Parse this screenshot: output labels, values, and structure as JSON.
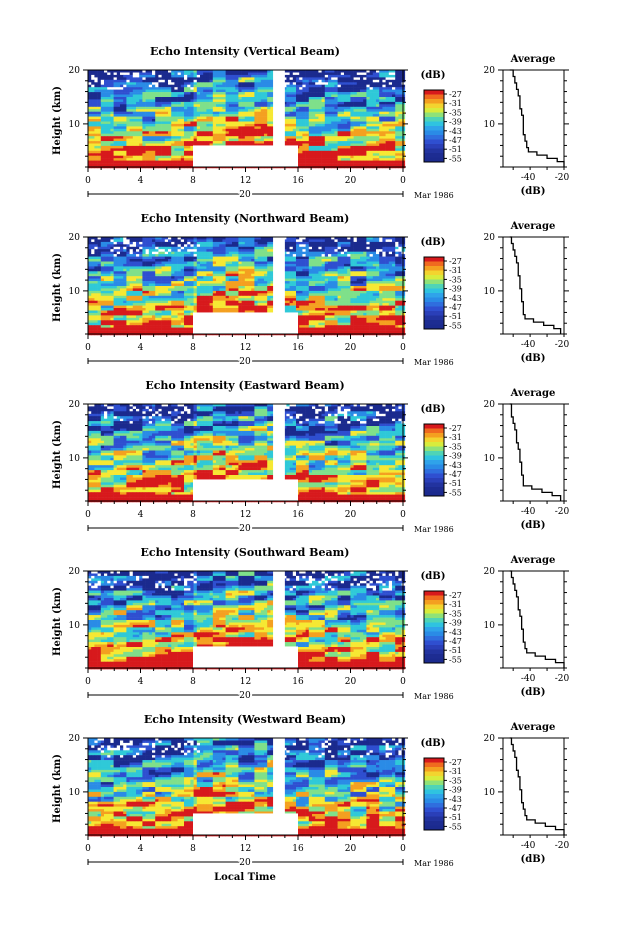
{
  "chart_data": [
    {
      "type": "heatmap",
      "title": "Echo Intensity (Vertical Beam)",
      "ylabel": "Height (km)",
      "xlabel": "",
      "x_ticks": [
        "0",
        "4",
        "8",
        "12",
        "16",
        "20",
        "0"
      ],
      "date_marker": "20",
      "date_label": "Mar 1986",
      "y_ticks": [
        "20",
        "10"
      ],
      "ylim": [
        2,
        20
      ],
      "xlim": [
        0,
        24
      ],
      "colorbar": {
        "unit": "(dB)",
        "levels": [
          -27,
          -31,
          -35,
          -39,
          -43,
          -47,
          -51,
          -55
        ]
      },
      "data_gap": {
        "x": [
          14.1,
          15.0
        ],
        "y_low": [
          8,
          16
        ],
        "y_low_max": 6
      },
      "average": {
        "title": "Average",
        "xlabel": "(dB)",
        "x_ticks": [
          "-40",
          "-20"
        ],
        "y_ticks": [
          "20",
          "10"
        ],
        "x": [
          -52,
          -50,
          -49,
          -48,
          -47,
          -46,
          -46,
          -45,
          -44,
          -44,
          -44,
          -43,
          -42,
          -41,
          -36,
          -30,
          -24,
          -20
        ],
        "y": [
          20,
          18.8,
          17.6,
          16.4,
          15.2,
          14,
          12.8,
          11.6,
          10.4,
          9.2,
          8,
          6.8,
          5.6,
          4.8,
          4.2,
          3.6,
          3,
          2
        ]
      }
    },
    {
      "type": "heatmap",
      "title": "Echo Intensity (Northward Beam)",
      "ylabel": "Height (km)",
      "xlabel": "",
      "x_ticks": [
        "0",
        "4",
        "8",
        "12",
        "16",
        "20",
        "0"
      ],
      "date_marker": "20",
      "date_label": "Mar 1986",
      "y_ticks": [
        "20",
        "10"
      ],
      "ylim": [
        2,
        20
      ],
      "xlim": [
        0,
        24
      ],
      "colorbar": {
        "unit": "(dB)",
        "levels": [
          -27,
          -31,
          -35,
          -39,
          -43,
          -47,
          -51,
          -55
        ]
      },
      "data_gap": {
        "x": [
          14.1,
          15.0
        ],
        "y_low": [
          8,
          16
        ],
        "y_low_max": 6
      },
      "average": {
        "title": "Average",
        "xlabel": "(dB)",
        "x_ticks": [
          "-40",
          "-20"
        ],
        "y_ticks": [
          "20",
          "10"
        ],
        "x": [
          -52,
          -51,
          -50,
          -49,
          -48,
          -47,
          -47,
          -46,
          -46,
          -45,
          -45,
          -44,
          -44,
          -43,
          -38,
          -32,
          -26,
          -22
        ],
        "y": [
          20,
          18.8,
          17.6,
          16.4,
          15.2,
          14,
          12.8,
          11.6,
          10.4,
          9.2,
          8,
          6.8,
          5.6,
          4.8,
          4.2,
          3.6,
          3,
          2
        ]
      }
    },
    {
      "type": "heatmap",
      "title": "Echo Intensity (Eastward Beam)",
      "ylabel": "Height (km)",
      "xlabel": "",
      "x_ticks": [
        "0",
        "4",
        "8",
        "12",
        "16",
        "20",
        "0"
      ],
      "date_marker": "20",
      "date_label": "Mar 1986",
      "y_ticks": [
        "20",
        "10"
      ],
      "ylim": [
        2,
        20
      ],
      "xlim": [
        0,
        24
      ],
      "colorbar": {
        "unit": "(dB)",
        "levels": [
          -27,
          -31,
          -35,
          -39,
          -43,
          -47,
          -51,
          -55
        ]
      },
      "data_gap": {
        "x": [
          14.1,
          15.0
        ],
        "y_low": [
          8,
          16
        ],
        "y_low_max": 6
      },
      "average": {
        "title": "Average",
        "xlabel": "(dB)",
        "x_ticks": [
          "-40",
          "-20"
        ],
        "y_ticks": [
          "20",
          "10"
        ],
        "x": [
          -52,
          -51,
          -51,
          -50,
          -49,
          -48,
          -48,
          -47,
          -46,
          -46,
          -45,
          -45,
          -44,
          -44,
          -39,
          -33,
          -27,
          -22
        ],
        "y": [
          20,
          18.8,
          17.6,
          16.4,
          15.2,
          14,
          12.8,
          11.6,
          10.4,
          9.2,
          8,
          6.8,
          5.6,
          4.8,
          4.2,
          3.6,
          3,
          2
        ]
      }
    },
    {
      "type": "heatmap",
      "title": "Echo Intensity (Southward Beam)",
      "ylabel": "Height (km)",
      "xlabel": "",
      "x_ticks": [
        "0",
        "4",
        "8",
        "12",
        "16",
        "20",
        "0"
      ],
      "date_marker": "20",
      "date_label": "Mar 1986",
      "y_ticks": [
        "20",
        "10"
      ],
      "ylim": [
        2,
        20
      ],
      "xlim": [
        0,
        24
      ],
      "colorbar": {
        "unit": "(dB)",
        "levels": [
          -27,
          -31,
          -35,
          -39,
          -43,
          -47,
          -51,
          -55
        ]
      },
      "data_gap": {
        "x": [
          14.1,
          15.0
        ],
        "y_low": [
          8,
          16
        ],
        "y_low_max": 6
      },
      "average": {
        "title": "Average",
        "xlabel": "(dB)",
        "x_ticks": [
          "-40",
          "-20"
        ],
        "y_ticks": [
          "20",
          "10"
        ],
        "x": [
          -52,
          -51,
          -50,
          -49,
          -48,
          -47,
          -47,
          -46,
          -45,
          -45,
          -44,
          -44,
          -43,
          -42,
          -37,
          -31,
          -25,
          -20
        ],
        "y": [
          20,
          18.8,
          17.6,
          16.4,
          15.2,
          14,
          12.8,
          11.6,
          10.4,
          9.2,
          8,
          6.8,
          5.6,
          4.8,
          4.2,
          3.6,
          3,
          2
        ]
      }
    },
    {
      "type": "heatmap",
      "title": "Echo Intensity (Westward Beam)",
      "ylabel": "Height (km)",
      "xlabel": "Local Time",
      "x_ticks": [
        "0",
        "4",
        "8",
        "12",
        "16",
        "20",
        "0"
      ],
      "date_marker": "20",
      "date_label": "Mar 1986",
      "y_ticks": [
        "20",
        "10"
      ],
      "ylim": [
        2,
        20
      ],
      "xlim": [
        0,
        24
      ],
      "colorbar": {
        "unit": "(dB)",
        "levels": [
          -27,
          -31,
          -35,
          -39,
          -43,
          -47,
          -51,
          -55
        ]
      },
      "data_gap": {
        "x": [
          14.1,
          15.0
        ],
        "y_low": [
          8,
          16
        ],
        "y_low_max": 6
      },
      "average": {
        "title": "Average",
        "xlabel": "(dB)",
        "x_ticks": [
          "-40",
          "-20"
        ],
        "y_ticks": [
          "20",
          "10"
        ],
        "x": [
          -52,
          -51,
          -50,
          -49,
          -48,
          -48,
          -47,
          -46,
          -46,
          -45,
          -45,
          -44,
          -43,
          -42,
          -37,
          -31,
          -25,
          -20
        ],
        "y": [
          20,
          18.8,
          17.6,
          16.4,
          15.2,
          14,
          12.8,
          11.6,
          10.4,
          9.2,
          8,
          6.8,
          5.6,
          4.8,
          4.2,
          3.6,
          3,
          2
        ]
      }
    }
  ],
  "colors": {
    "scale": [
      "#d7191c",
      "#f4a020",
      "#f6e833",
      "#7fe08a",
      "#2fc9d8",
      "#2a8be6",
      "#2f4fd0",
      "#1b2a8e"
    ]
  }
}
